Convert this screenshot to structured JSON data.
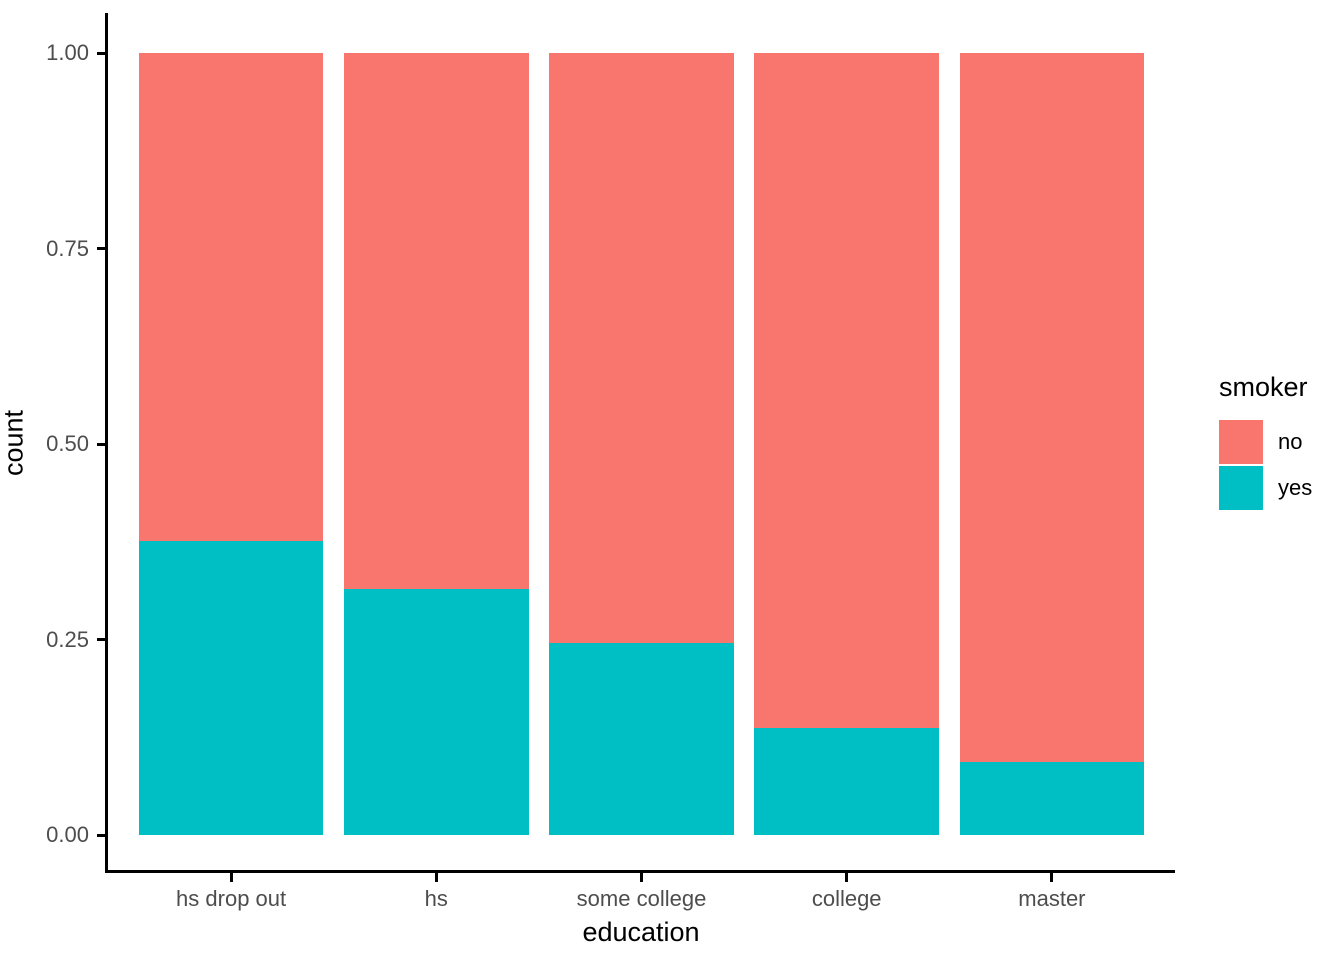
{
  "chart_data": {
    "type": "bar",
    "subtype": "stacked-fill-proportion",
    "title": "",
    "xlabel": "education",
    "ylabel": "count",
    "categories": [
      "hs drop out",
      "hs",
      "some college",
      "college",
      "master"
    ],
    "series": [
      {
        "name": "yes",
        "color": "#00BFC4",
        "values": [
          0.376,
          0.315,
          0.245,
          0.137,
          0.093
        ]
      },
      {
        "name": "no",
        "color": "#F8766D",
        "values": [
          0.624,
          0.685,
          0.755,
          0.863,
          0.907
        ]
      }
    ],
    "stack_order_bottom_to_top": [
      "yes",
      "no"
    ],
    "ylim": [
      0,
      1
    ],
    "y_ticks": [
      {
        "value": 0.0,
        "label": "0.00"
      },
      {
        "value": 0.25,
        "label": "0.25"
      },
      {
        "value": 0.5,
        "label": "0.50"
      },
      {
        "value": 0.75,
        "label": "0.75"
      },
      {
        "value": 1.0,
        "label": "1.00"
      }
    ],
    "grid": false,
    "background": "#ffffff",
    "axis_line_color": "#000000",
    "tick_label_color": "#4d4d4d",
    "legend": {
      "title": "smoker",
      "position": "right",
      "items": [
        {
          "label": "no",
          "color": "#F8766D"
        },
        {
          "label": "yes",
          "color": "#00BFC4"
        }
      ]
    }
  }
}
